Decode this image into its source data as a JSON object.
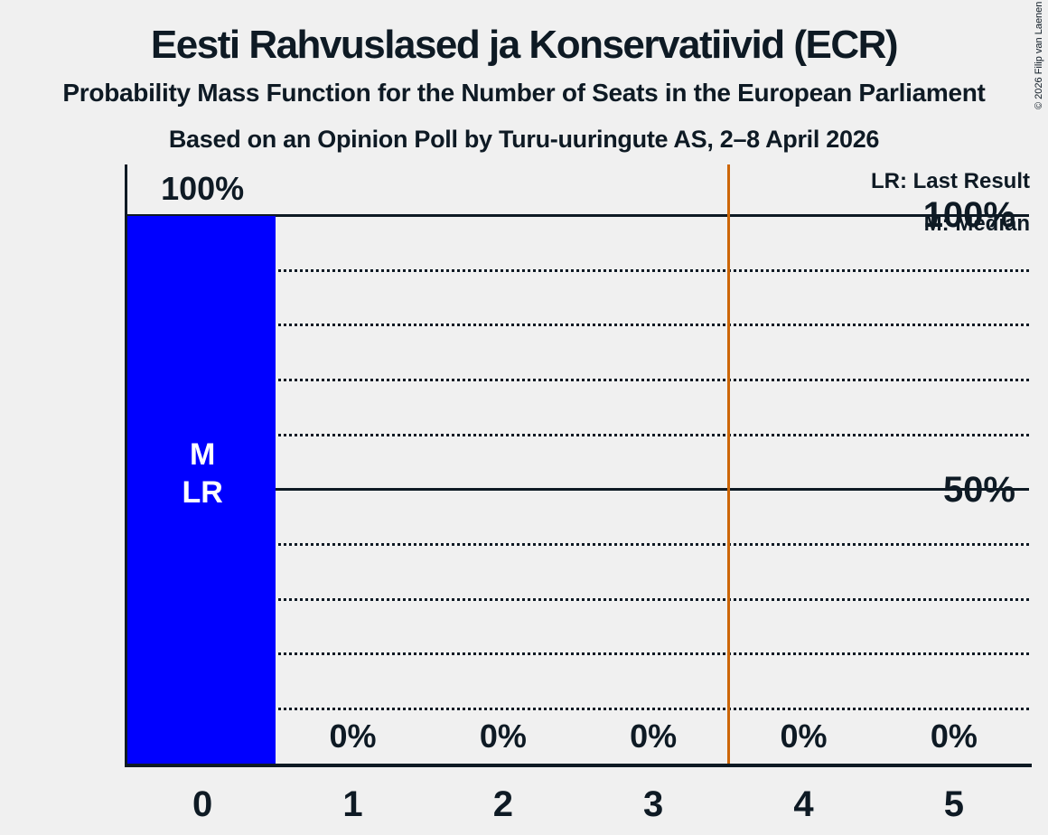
{
  "copyright": "© 2026 Filip van Laenen",
  "chart_data": {
    "type": "bar",
    "title": "Eesti Rahvuslased ja Konservatiivid (ECR)",
    "subtitle": "Probability Mass Function for the Number of Seats in the European Parliament",
    "source_line": "Based on an Opinion Poll by Turu-uuringute AS, 2–8 April 2026",
    "categories": [
      "0",
      "1",
      "2",
      "3",
      "4",
      "5"
    ],
    "values": [
      100,
      0,
      0,
      0,
      0,
      0
    ],
    "value_labels": [
      "100%",
      "0%",
      "0%",
      "0%",
      "0%",
      "0%"
    ],
    "xlabel": "",
    "ylabel": "",
    "ylim": [
      0,
      100
    ],
    "ytick_values": [
      100,
      50
    ],
    "ytick_labels": [
      "100%",
      "50%"
    ],
    "gridlines": {
      "solid": [
        100,
        50
      ],
      "dotted": [
        90,
        80,
        70,
        60,
        40,
        30,
        20,
        10
      ]
    },
    "bar_annotations": [
      {
        "category_index": 0,
        "lines": [
          "M",
          "LR"
        ]
      }
    ],
    "reference_line": {
      "x": 3.5
    },
    "legend": {
      "position": "top-right",
      "entries": [
        "LR: Last Result",
        "M: Median"
      ]
    },
    "colors": {
      "bar": "#0000FF",
      "bar_label_text": "#FFFFFF",
      "text": "#0E1A24",
      "background": "#F0F0F0",
      "reference_line": "#CC6608"
    }
  }
}
